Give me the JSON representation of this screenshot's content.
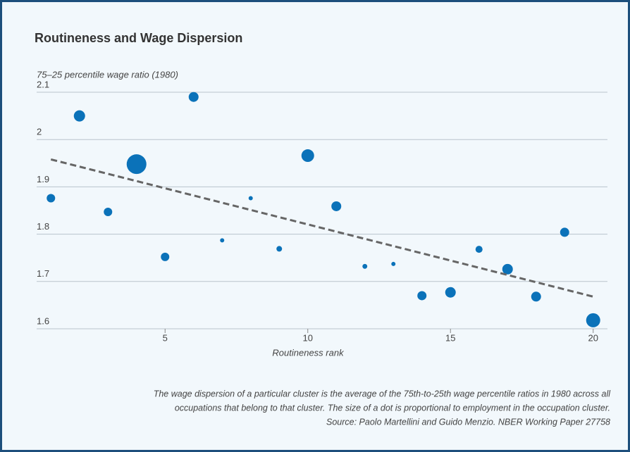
{
  "chart_data": {
    "type": "scatter",
    "title": "Routineness and Wage Dispersion",
    "y_label": "75–25 percentile wage ratio (1980)",
    "x_label": "Routineness rank",
    "x": [
      1,
      2,
      3,
      4,
      5,
      6,
      7,
      8,
      9,
      10,
      11,
      12,
      13,
      14,
      15,
      16,
      17,
      18,
      19,
      20
    ],
    "values": [
      1.876,
      2.05,
      1.847,
      1.948,
      1.752,
      2.09,
      1.787,
      1.876,
      1.769,
      1.966,
      1.859,
      1.732,
      1.737,
      1.67,
      1.677,
      1.768,
      1.726,
      1.668,
      1.804,
      1.618
    ],
    "sizes": [
      36,
      64,
      36,
      196,
      36,
      49,
      9,
      9,
      16,
      81,
      49,
      12,
      9,
      42,
      56,
      25,
      56,
      49,
      42,
      100
    ],
    "color": "#0b72b9",
    "trendline": {
      "x": [
        1,
        20
      ],
      "y": [
        1.958,
        1.668
      ],
      "color": "#666666"
    },
    "xlim": [
      0.5,
      20.5
    ],
    "ylim": [
      1.6,
      2.1
    ],
    "xticks": [
      5,
      10,
      15,
      20
    ],
    "yticks": [
      1.6,
      1.7,
      1.8,
      1.9,
      2.0,
      2.1
    ],
    "grid": true,
    "caption": [
      "The wage dispersion of a particular cluster is the average of the 75th-to-25th wage percentile ratios in 1980 across all",
      "occupations that belong to that cluster. The size of a dot is proportional to employment in the occupation cluster.",
      "Source: Paolo Martellini and Guido Menzio. NBER Working Paper 27758"
    ]
  }
}
